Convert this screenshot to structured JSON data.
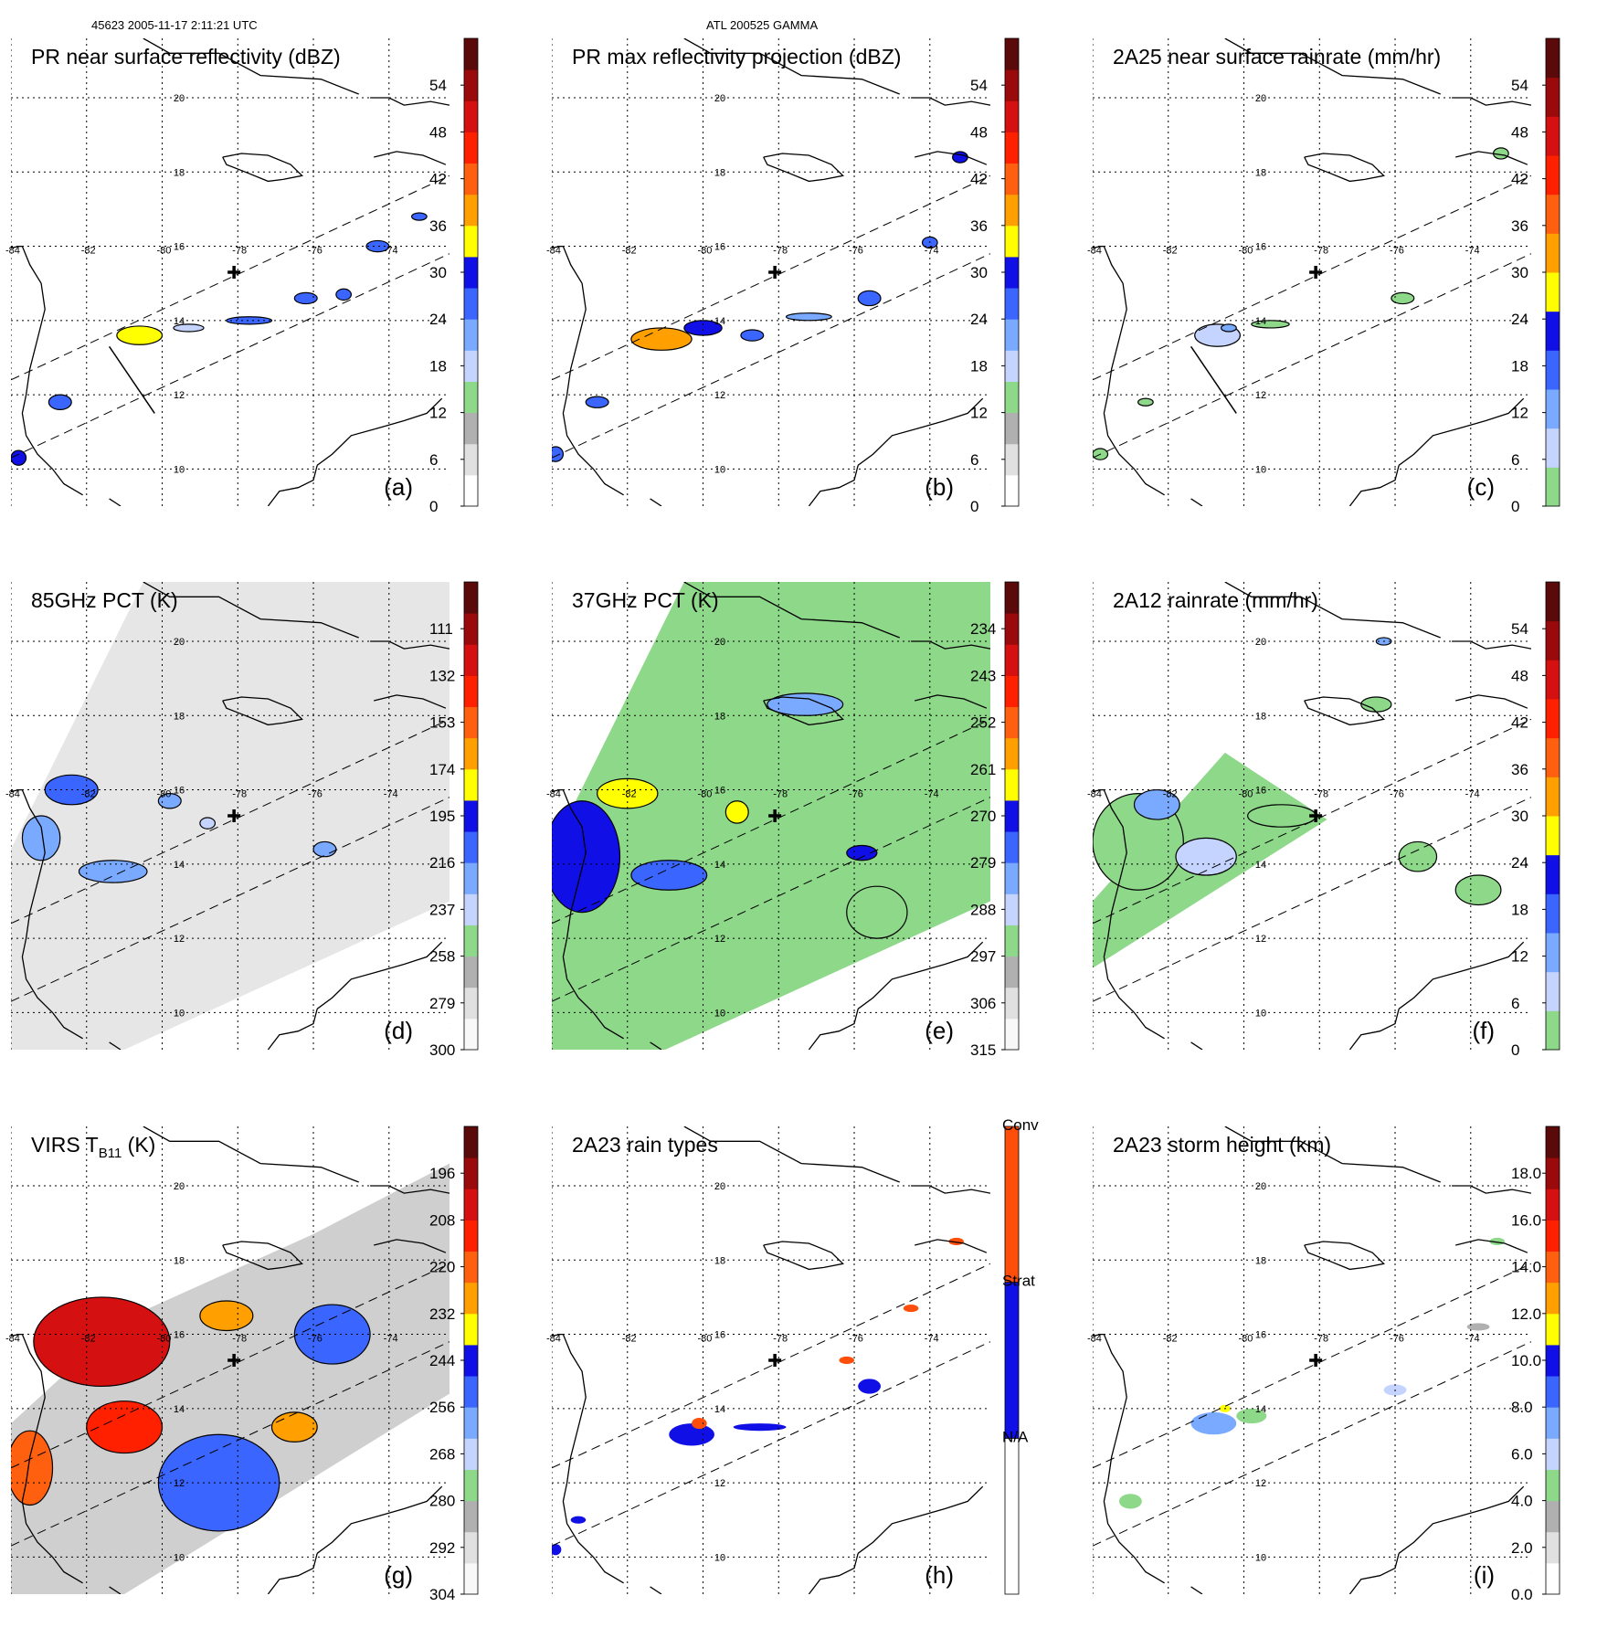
{
  "header": {
    "left": "45623 2005-11-17 2:11:21 UTC",
    "center": "ATL 200525 GAMMA"
  },
  "map": {
    "lon_range": [
      -84.0,
      -72.4
    ],
    "lat_range": [
      9.0,
      21.6
    ],
    "lon_ticks": [
      "-84",
      "-82",
      "-80",
      "-78",
      "-76",
      "-74"
    ],
    "lat_ticks": [
      "20",
      "18",
      "16",
      "14",
      "12",
      "10"
    ],
    "storm_center": {
      "lon": -78.1,
      "lat": 15.3
    }
  },
  "chart_data": [
    {
      "type": "heatmap",
      "letter": "(a)",
      "title_main": "PR near surface reflectivity (dBZ)",
      "title_sub": "",
      "title_unit": "",
      "swath": "pr",
      "cross_section": true,
      "colorbar": {
        "ticks": [
          "0",
          "6",
          "12",
          "18",
          "24",
          "30",
          "36",
          "42",
          "48",
          "54"
        ],
        "kind": "dbz"
      },
      "features": [
        {
          "lon": -80.6,
          "lat": 13.6,
          "value": 34,
          "rx": 0.6,
          "ry": 0.25
        },
        {
          "lon": -79.3,
          "lat": 13.8,
          "value": 17,
          "rx": 0.4,
          "ry": 0.1
        },
        {
          "lon": -77.7,
          "lat": 14.0,
          "value": 24,
          "rx": 0.6,
          "ry": 0.1
        },
        {
          "lon": -76.2,
          "lat": 14.6,
          "value": 26,
          "rx": 0.3,
          "ry": 0.15
        },
        {
          "lon": -75.2,
          "lat": 14.7,
          "value": 24,
          "rx": 0.2,
          "ry": 0.15
        },
        {
          "lon": -74.3,
          "lat": 16.0,
          "value": 27,
          "rx": 0.3,
          "ry": 0.15
        },
        {
          "lon": -73.2,
          "lat": 16.8,
          "value": 26,
          "rx": 0.2,
          "ry": 0.1
        },
        {
          "lon": -82.7,
          "lat": 11.8,
          "value": 24,
          "rx": 0.3,
          "ry": 0.2
        },
        {
          "lon": -83.8,
          "lat": 10.3,
          "value": 28,
          "rx": 0.2,
          "ry": 0.2
        }
      ]
    },
    {
      "type": "heatmap",
      "letter": "(b)",
      "title_main": "PR max reflectivity projection (dBZ)",
      "title_sub": "",
      "title_unit": "",
      "swath": "pr",
      "cross_section": false,
      "colorbar": {
        "ticks": [
          "0",
          "6",
          "12",
          "18",
          "24",
          "30",
          "36",
          "42",
          "48",
          "54"
        ],
        "kind": "dbz"
      },
      "features": [
        {
          "lon": -81.1,
          "lat": 13.5,
          "value": 38,
          "rx": 0.8,
          "ry": 0.3
        },
        {
          "lon": -80.0,
          "lat": 13.8,
          "value": 30,
          "rx": 0.5,
          "ry": 0.2
        },
        {
          "lon": -78.7,
          "lat": 13.6,
          "value": 27,
          "rx": 0.3,
          "ry": 0.15
        },
        {
          "lon": -77.2,
          "lat": 14.1,
          "value": 22,
          "rx": 0.6,
          "ry": 0.1
        },
        {
          "lon": -75.6,
          "lat": 14.6,
          "value": 27,
          "rx": 0.3,
          "ry": 0.2
        },
        {
          "lon": -74.0,
          "lat": 16.1,
          "value": 24,
          "rx": 0.2,
          "ry": 0.15
        },
        {
          "lon": -73.2,
          "lat": 18.4,
          "value": 30,
          "rx": 0.2,
          "ry": 0.15
        },
        {
          "lon": -82.8,
          "lat": 11.8,
          "value": 27,
          "rx": 0.3,
          "ry": 0.15
        },
        {
          "lon": -83.9,
          "lat": 10.4,
          "value": 26,
          "rx": 0.2,
          "ry": 0.2
        }
      ]
    },
    {
      "type": "heatmap",
      "letter": "(c)",
      "title_main": "2A25 near surface rainrate (mm/hr)",
      "title_sub": "",
      "title_unit": "",
      "swath": "pr",
      "cross_section": true,
      "colorbar": {
        "ticks": [
          "0",
          "6",
          "12",
          "18",
          "24",
          "30",
          "36",
          "42",
          "48",
          "54"
        ],
        "kind": "rain"
      },
      "features": [
        {
          "lon": -80.7,
          "lat": 13.6,
          "value": 6,
          "rx": 0.6,
          "ry": 0.3
        },
        {
          "lon": -80.4,
          "lat": 13.8,
          "value": 14,
          "rx": 0.2,
          "ry": 0.1
        },
        {
          "lon": -79.3,
          "lat": 13.9,
          "value": 4,
          "rx": 0.5,
          "ry": 0.1
        },
        {
          "lon": -75.8,
          "lat": 14.6,
          "value": 4,
          "rx": 0.3,
          "ry": 0.15
        },
        {
          "lon": -73.2,
          "lat": 18.5,
          "value": 4,
          "rx": 0.2,
          "ry": 0.15
        },
        {
          "lon": -82.6,
          "lat": 11.8,
          "value": 3,
          "rx": 0.2,
          "ry": 0.1
        },
        {
          "lon": -83.8,
          "lat": 10.4,
          "value": 3,
          "rx": 0.2,
          "ry": 0.15
        }
      ]
    },
    {
      "type": "heatmap",
      "letter": "(d)",
      "title_main": "85GHz PCT (K)",
      "title_sub": "",
      "title_unit": "",
      "swath": "tmi",
      "cross_section": false,
      "colorbar": {
        "ticks": [
          "300",
          "279",
          "258",
          "237",
          "216",
          "195",
          "174",
          "153",
          "132",
          "111"
        ],
        "kind": "tb85"
      },
      "features": [
        {
          "lon": -82.4,
          "lat": 16.0,
          "value": 215,
          "rx": 0.7,
          "ry": 0.4
        },
        {
          "lon": -83.2,
          "lat": 14.7,
          "value": 220,
          "rx": 0.5,
          "ry": 0.6
        },
        {
          "lon": -81.3,
          "lat": 13.8,
          "value": 218,
          "rx": 0.9,
          "ry": 0.3
        },
        {
          "lon": -79.8,
          "lat": 15.7,
          "value": 225,
          "rx": 0.3,
          "ry": 0.2
        },
        {
          "lon": -78.8,
          "lat": 15.1,
          "value": 240,
          "rx": 0.2,
          "ry": 0.15
        },
        {
          "lon": -75.7,
          "lat": 14.4,
          "value": 225,
          "rx": 0.3,
          "ry": 0.2
        }
      ]
    },
    {
      "type": "heatmap",
      "letter": "(e)",
      "title_main": "37GHz PCT (K)",
      "title_sub": "",
      "title_unit": "",
      "swath": "tmi",
      "cross_section": false,
      "colorbar": {
        "ticks": [
          "315",
          "306",
          "297",
          "288",
          "279",
          "270",
          "261",
          "252",
          "243",
          "234"
        ],
        "kind": "tb37"
      },
      "features": [
        {
          "lon": -83.2,
          "lat": 14.2,
          "value": 272,
          "rx": 1.0,
          "ry": 1.5
        },
        {
          "lon": -82.0,
          "lat": 15.9,
          "value": 262,
          "rx": 0.8,
          "ry": 0.4
        },
        {
          "lon": -80.9,
          "lat": 13.7,
          "value": 275,
          "rx": 1.0,
          "ry": 0.4
        },
        {
          "lon": -79.1,
          "lat": 15.4,
          "value": 262,
          "rx": 0.3,
          "ry": 0.3
        },
        {
          "lon": -75.8,
          "lat": 14.3,
          "value": 272,
          "rx": 0.4,
          "ry": 0.2
        },
        {
          "lon": -75.4,
          "lat": 12.7,
          "value": 297,
          "rx": 0.8,
          "ry": 0.7
        },
        {
          "lon": -77.3,
          "lat": 18.3,
          "value": 282,
          "rx": 1.0,
          "ry": 0.3
        }
      ]
    },
    {
      "type": "heatmap",
      "letter": "(f)",
      "title_main": "2A12 rainrate (mm/hr)",
      "title_sub": "",
      "title_unit": "",
      "swath": "tmi-partial",
      "cross_section": false,
      "colorbar": {
        "ticks": [
          "0",
          "6",
          "12",
          "18",
          "24",
          "30",
          "36",
          "42",
          "48",
          "54"
        ],
        "kind": "rain"
      },
      "features": [
        {
          "lon": -82.8,
          "lat": 14.6,
          "value": 3,
          "rx": 1.2,
          "ry": 1.3
        },
        {
          "lon": -82.3,
          "lat": 15.6,
          "value": 10,
          "rx": 0.6,
          "ry": 0.4
        },
        {
          "lon": -81.0,
          "lat": 14.2,
          "value": 6,
          "rx": 0.8,
          "ry": 0.5
        },
        {
          "lon": -79.0,
          "lat": 15.3,
          "value": 3,
          "rx": 0.9,
          "ry": 0.3
        },
        {
          "lon": -75.4,
          "lat": 14.2,
          "value": 4,
          "rx": 0.5,
          "ry": 0.4
        },
        {
          "lon": -73.8,
          "lat": 13.3,
          "value": 3,
          "rx": 0.6,
          "ry": 0.4
        },
        {
          "lon": -76.5,
          "lat": 18.3,
          "value": 3,
          "rx": 0.4,
          "ry": 0.2
        },
        {
          "lon": -76.3,
          "lat": 20.0,
          "value": 12,
          "rx": 0.2,
          "ry": 0.1
        }
      ]
    },
    {
      "type": "heatmap",
      "letter": "(g)",
      "title_main": "VIRS T",
      "title_sub": "B11",
      "title_unit": " (K)",
      "swath": "virs",
      "cross_section": false,
      "colorbar": {
        "ticks": [
          "304",
          "292",
          "280",
          "268",
          "256",
          "244",
          "232",
          "220",
          "208",
          "196"
        ],
        "kind": "virs"
      },
      "features": [
        {
          "lon": -81.6,
          "lat": 15.8,
          "value": 208,
          "rx": 1.8,
          "ry": 1.2
        },
        {
          "lon": -81.0,
          "lat": 13.5,
          "value": 210,
          "rx": 1.0,
          "ry": 0.7
        },
        {
          "lon": -83.5,
          "lat": 12.4,
          "value": 222,
          "rx": 0.6,
          "ry": 1.0
        },
        {
          "lon": -78.3,
          "lat": 16.5,
          "value": 228,
          "rx": 0.7,
          "ry": 0.4
        },
        {
          "lon": -76.5,
          "lat": 13.5,
          "value": 230,
          "rx": 0.6,
          "ry": 0.4
        },
        {
          "lon": -78.5,
          "lat": 12.0,
          "value": 252,
          "rx": 1.6,
          "ry": 1.3
        },
        {
          "lon": -75.5,
          "lat": 16.0,
          "value": 252,
          "rx": 1.0,
          "ry": 0.8
        }
      ]
    },
    {
      "type": "heatmap",
      "letter": "(h)",
      "title_main": "2A23 rain types",
      "title_sub": "",
      "title_unit": "",
      "swath": "pr",
      "cross_section": false,
      "colorbar": {
        "ticks": [
          "N/A",
          "Strat",
          "Conv"
        ],
        "kind": "types"
      },
      "features": [
        {
          "lon": -80.3,
          "lat": 13.3,
          "value": 1,
          "rx": 0.6,
          "ry": 0.3
        },
        {
          "lon": -80.1,
          "lat": 13.6,
          "value": 2,
          "rx": 0.2,
          "ry": 0.15
        },
        {
          "lon": -78.5,
          "lat": 13.5,
          "value": 1,
          "rx": 0.7,
          "ry": 0.1
        },
        {
          "lon": -75.6,
          "lat": 14.6,
          "value": 1,
          "rx": 0.3,
          "ry": 0.2
        },
        {
          "lon": -76.2,
          "lat": 15.3,
          "value": 2,
          "rx": 0.2,
          "ry": 0.1
        },
        {
          "lon": -74.5,
          "lat": 16.7,
          "value": 2,
          "rx": 0.2,
          "ry": 0.1
        },
        {
          "lon": -73.3,
          "lat": 18.5,
          "value": 2,
          "rx": 0.2,
          "ry": 0.1
        },
        {
          "lon": -83.3,
          "lat": 11.0,
          "value": 1,
          "rx": 0.2,
          "ry": 0.1
        },
        {
          "lon": -83.9,
          "lat": 10.2,
          "value": 1,
          "rx": 0.15,
          "ry": 0.15
        }
      ]
    },
    {
      "type": "heatmap",
      "letter": "(i)",
      "title_main": "2A23 storm height (km)",
      "title_sub": "",
      "title_unit": "",
      "swath": "pr",
      "cross_section": false,
      "colorbar": {
        "ticks": [
          "0.0",
          "2.0",
          "4.0",
          "6.0",
          "8.0",
          "10.0",
          "12.0",
          "14.0",
          "16.0",
          "18.0"
        ],
        "kind": "height"
      },
      "features": [
        {
          "lon": -80.8,
          "lat": 13.6,
          "value": 7,
          "rx": 0.6,
          "ry": 0.3
        },
        {
          "lon": -79.8,
          "lat": 13.8,
          "value": 4,
          "rx": 0.4,
          "ry": 0.2
        },
        {
          "lon": -80.5,
          "lat": 14.0,
          "value": 11,
          "rx": 0.15,
          "ry": 0.1
        },
        {
          "lon": -76.0,
          "lat": 14.5,
          "value": 6,
          "rx": 0.3,
          "ry": 0.15
        },
        {
          "lon": -83.0,
          "lat": 11.5,
          "value": 5,
          "rx": 0.3,
          "ry": 0.2
        },
        {
          "lon": -73.3,
          "lat": 18.5,
          "value": 5,
          "rx": 0.2,
          "ry": 0.1
        },
        {
          "lon": -73.8,
          "lat": 16.2,
          "value": 3,
          "rx": 0.3,
          "ry": 0.1
        }
      ]
    }
  ]
}
